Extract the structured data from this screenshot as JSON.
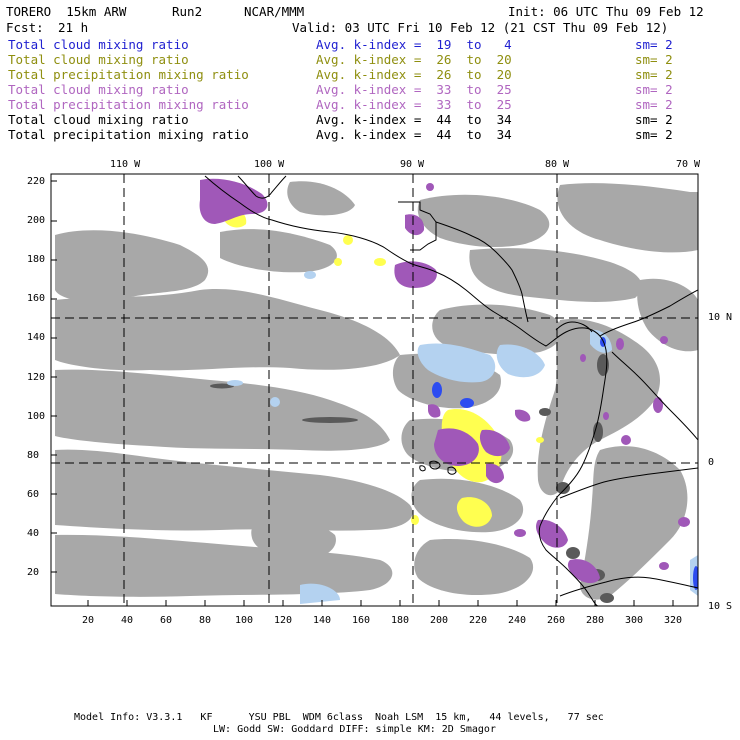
{
  "header": {
    "model": "TORERO  15km ARW",
    "run": "Run2",
    "org": "NCAR/MMM",
    "init": "Init: 06 UTC Thu 09 Feb 12",
    "fcst_label": "Fcst:",
    "fcst_value": "21 h",
    "valid": "Valid: 03 UTC Fri 10 Feb 12 (21 CST Thu 09 Feb 12)"
  },
  "legend": [
    {
      "field": "Total cloud mixing ratio",
      "stat": "Avg. k-index =  19  to   4",
      "sm": "sm= 2",
      "color": "#1f1fd0"
    },
    {
      "field": "Total cloud mixing ratio",
      "stat": "Avg. k-index =  26  to  20",
      "sm": "sm= 2",
      "color": "#8f8f10"
    },
    {
      "field": "Total precipitation mixing ratio",
      "stat": "Avg. k-index =  26  to  20",
      "sm": "sm= 2",
      "color": "#8f8f10"
    },
    {
      "field": "Total cloud mixing ratio",
      "stat": "Avg. k-index =  33  to  25",
      "sm": "sm= 2",
      "color": "#b066c0"
    },
    {
      "field": "Total precipitation mixing ratio",
      "stat": "Avg. k-index =  33  to  25",
      "sm": "sm= 2",
      "color": "#b066c0"
    },
    {
      "field": "Total cloud mixing ratio",
      "stat": "Avg. k-index =  44  to  34",
      "sm": "sm= 2",
      "color": "#000000"
    },
    {
      "field": "Total precipitation mixing ratio",
      "stat": "Avg. k-index =  44  to  34",
      "sm": "sm= 2",
      "color": "#000000"
    }
  ],
  "top_lon_labels": [
    "110 W",
    "100 W",
    "90 W",
    "80 W",
    "70 W"
  ],
  "right_lat_labels": [
    "10 N",
    "0",
    "10 S"
  ],
  "y_ticks": [
    "220",
    "200",
    "180",
    "160",
    "140",
    "120",
    "100",
    "80",
    "60",
    "40",
    "20"
  ],
  "x_ticks": [
    "20",
    "40",
    "60",
    "80",
    "100",
    "120",
    "140",
    "160",
    "180",
    "200",
    "220",
    "240",
    "260",
    "280",
    "300",
    "320"
  ],
  "footer": {
    "line1": "Model Info: V3.3.1   KF      YSU PBL  WDM 6class  Noah LSM  15 km,   44 levels,   77 sec",
    "line2": "LW: Godd SW: Goddard DIFF: simple KM: 2D Smagor"
  },
  "colors": {
    "cloud_gray": "#a8a8a8",
    "cloud_dark": "#5a5a5a",
    "light_blue": "#b4d2f0",
    "blue": "#2c4cf0",
    "yellow": "#ffff50",
    "purple": "#a058b8",
    "coastline": "#000000",
    "gridline": "#000000"
  }
}
